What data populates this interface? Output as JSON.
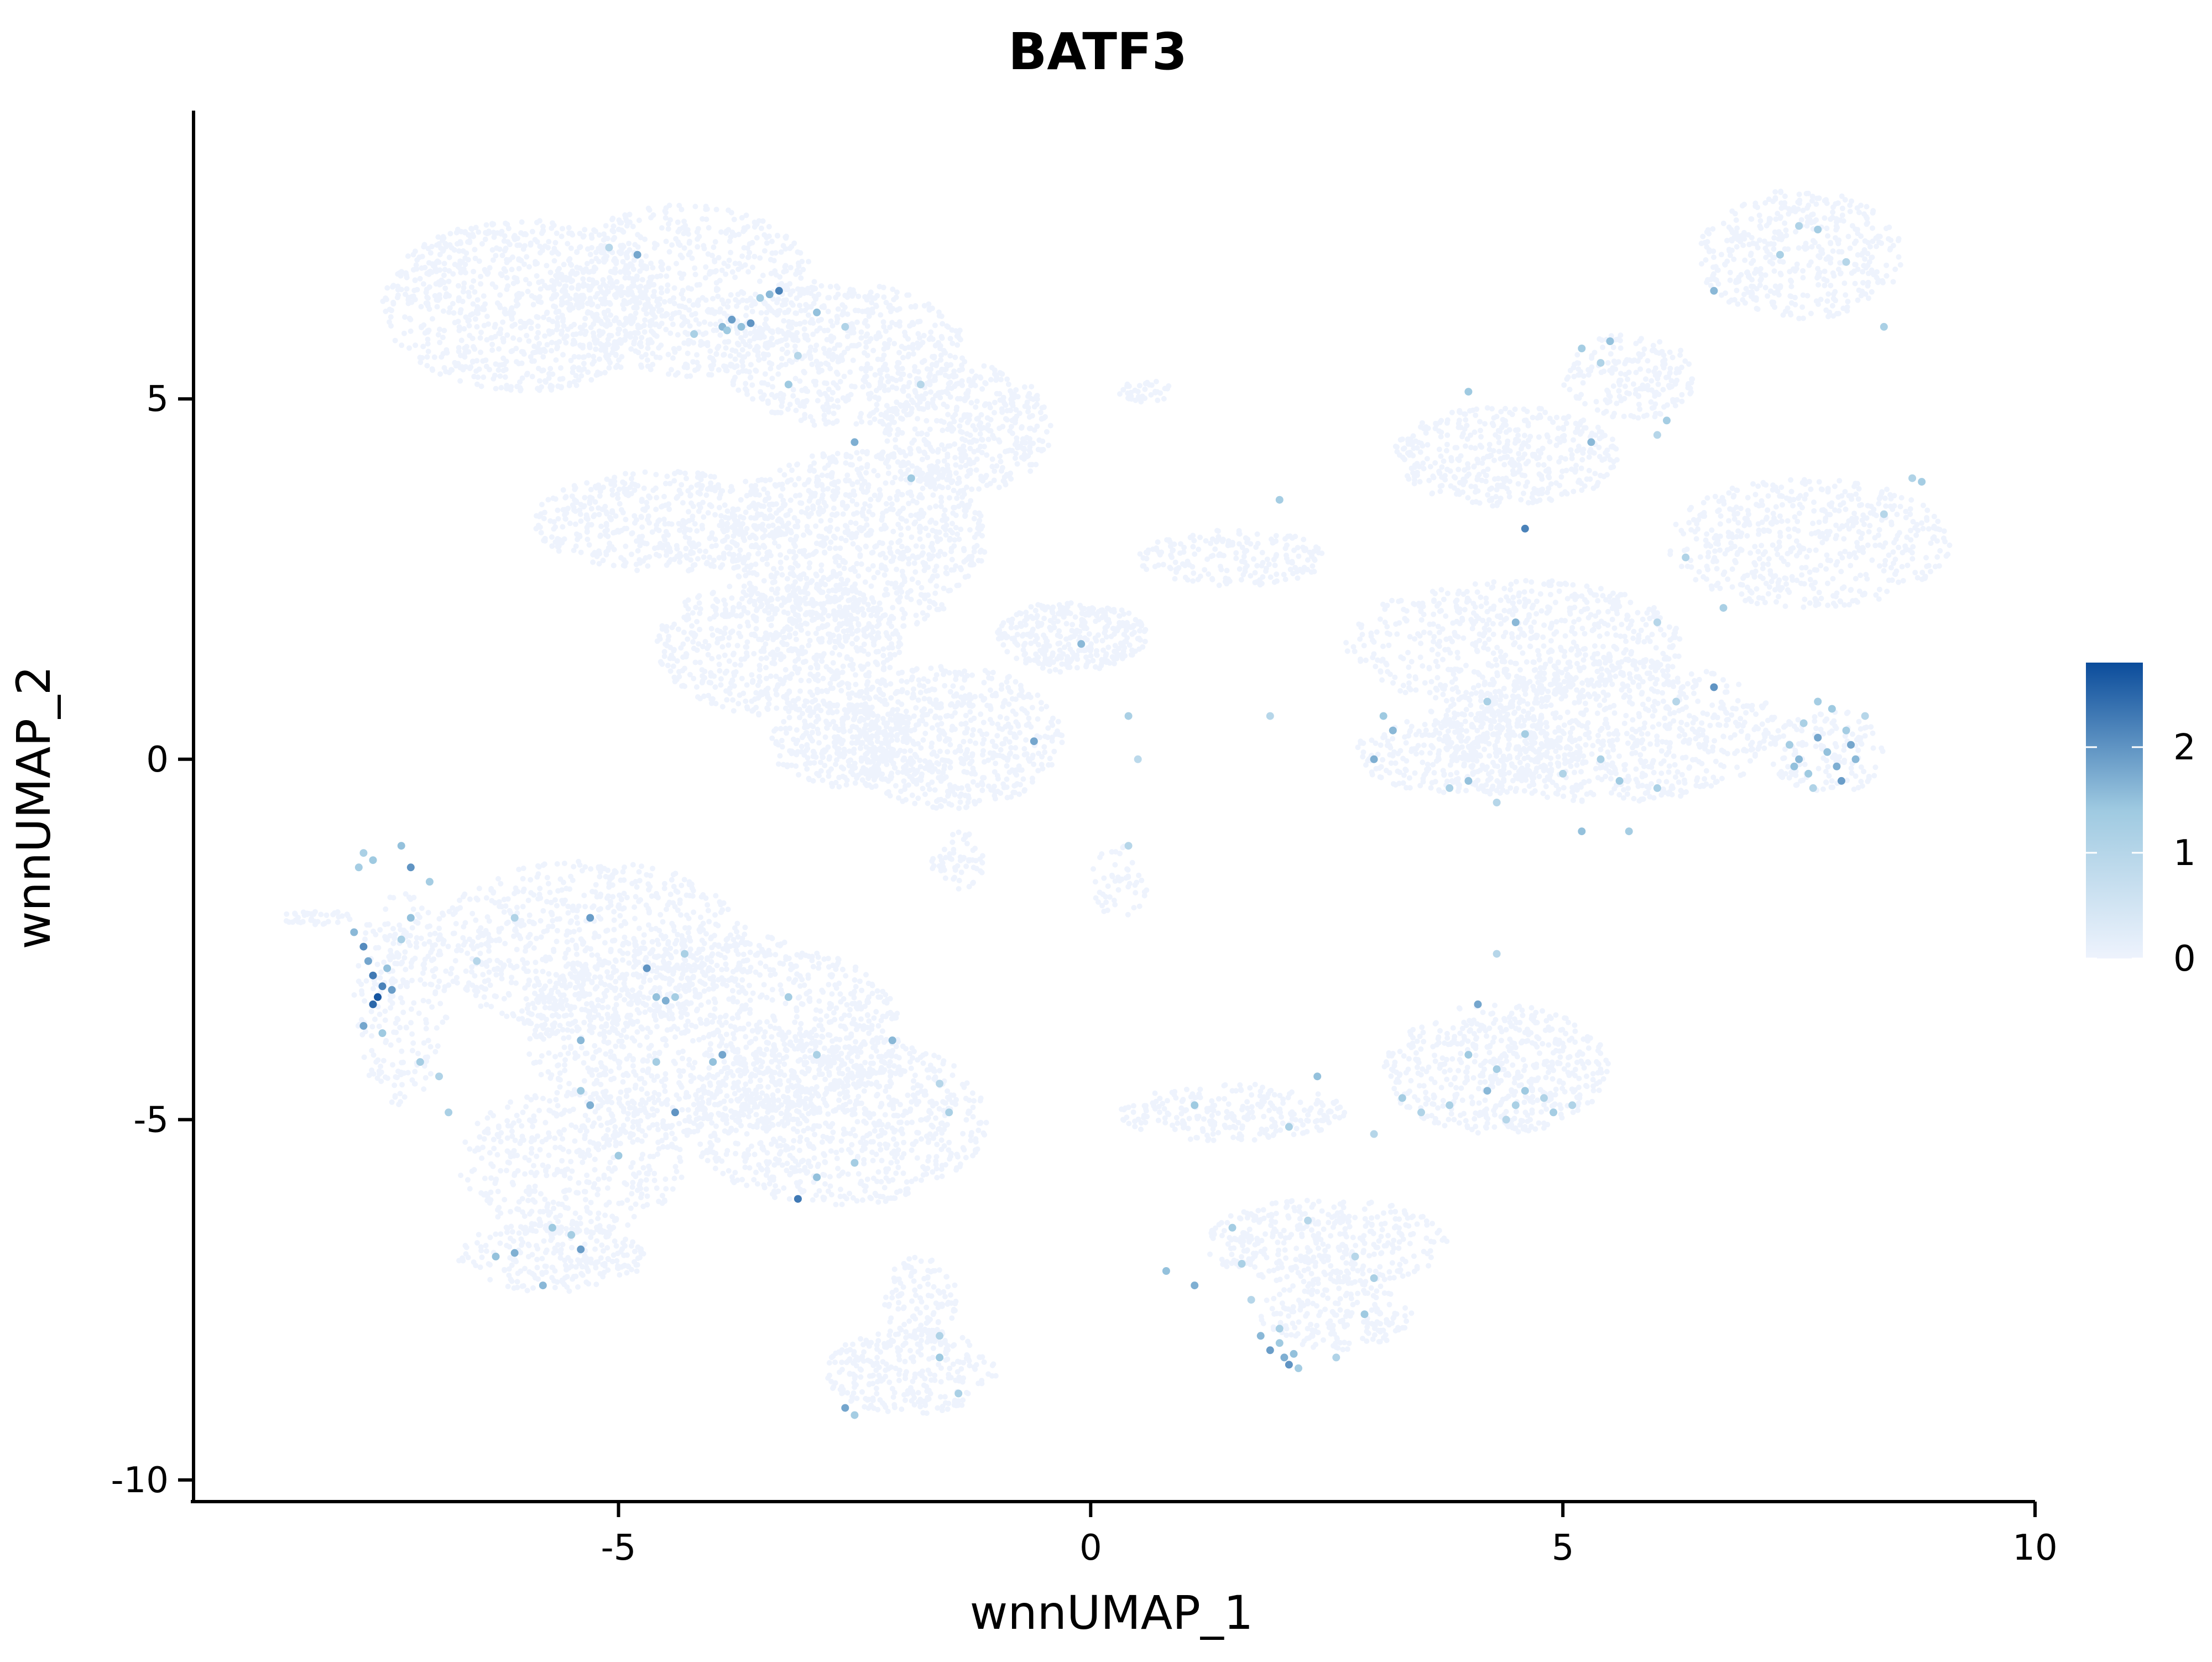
{
  "chart_data": {
    "type": "scatter",
    "title": "BATF3",
    "xlabel": "wnnUMAP_1",
    "ylabel": "wnnUMAP_2",
    "xlim": [
      -9.5,
      10
    ],
    "ylim": [
      -10.3,
      9.0
    ],
    "x_ticks": [
      {
        "value": -5,
        "label": "-5"
      },
      {
        "value": 0,
        "label": "0"
      },
      {
        "value": 5,
        "label": "5"
      },
      {
        "value": 10,
        "label": "10"
      }
    ],
    "y_ticks": [
      {
        "value": -10,
        "label": "-10"
      },
      {
        "value": -5,
        "label": "-5"
      },
      {
        "value": 0,
        "label": "0"
      },
      {
        "value": 5,
        "label": "5"
      }
    ],
    "grid": false,
    "legend_position": "right",
    "colorscale": {
      "low_color": "#eef3fd",
      "mid_color": "#9fcae1",
      "high_color": "#0b4c9b",
      "min": 0,
      "max": 2.8,
      "ticks": [
        {
          "value": 0,
          "label": "0"
        },
        {
          "value": 1,
          "label": "1"
        },
        {
          "value": 2,
          "label": "2"
        }
      ]
    },
    "background_clusters": [
      {
        "cx": -6.0,
        "cy": 6.3,
        "rx": 1.5,
        "ry": 1.2,
        "n": 900
      },
      {
        "cx": -4.3,
        "cy": 6.5,
        "rx": 1.4,
        "ry": 1.2,
        "n": 700
      },
      {
        "cx": -2.6,
        "cy": 5.6,
        "rx": 1.3,
        "ry": 1.0,
        "n": 600
      },
      {
        "cx": -1.3,
        "cy": 4.6,
        "rx": 0.9,
        "ry": 0.9,
        "n": 450
      },
      {
        "cx": -2.5,
        "cy": 3.0,
        "rx": 1.4,
        "ry": 1.3,
        "n": 900
      },
      {
        "cx": -4.5,
        "cy": 3.3,
        "rx": 1.4,
        "ry": 0.7,
        "n": 500
      },
      {
        "cx": -3.3,
        "cy": 1.6,
        "rx": 1.3,
        "ry": 1.0,
        "n": 700
      },
      {
        "cx": -1.5,
        "cy": 0.3,
        "rx": 1.2,
        "ry": 1.0,
        "n": 650
      },
      {
        "cx": -2.6,
        "cy": 0.2,
        "rx": 0.8,
        "ry": 0.6,
        "n": 300
      },
      {
        "cx": -0.2,
        "cy": 1.7,
        "rx": 0.8,
        "ry": 0.5,
        "n": 350
      },
      {
        "cx": -1.4,
        "cy": -1.4,
        "rx": 0.3,
        "ry": 0.4,
        "n": 60
      },
      {
        "cx": 0.3,
        "cy": -1.7,
        "rx": 0.3,
        "ry": 0.5,
        "n": 50
      },
      {
        "cx": 0.6,
        "cy": 5.1,
        "rx": 0.3,
        "ry": 0.15,
        "n": 40
      },
      {
        "cx": 1.5,
        "cy": 2.8,
        "rx": 1.0,
        "ry": 0.4,
        "n": 200
      },
      {
        "cx": 4.4,
        "cy": 4.2,
        "rx": 1.2,
        "ry": 0.7,
        "n": 450
      },
      {
        "cx": 5.7,
        "cy": 5.3,
        "rx": 0.7,
        "ry": 0.6,
        "n": 200
      },
      {
        "cx": 7.5,
        "cy": 7.0,
        "rx": 1.1,
        "ry": 0.9,
        "n": 450
      },
      {
        "cx": 7.6,
        "cy": 3.0,
        "rx": 1.5,
        "ry": 0.9,
        "n": 550
      },
      {
        "cx": 4.5,
        "cy": 1.6,
        "rx": 1.8,
        "ry": 0.9,
        "n": 650
      },
      {
        "cx": 5.5,
        "cy": 0.4,
        "rx": 1.8,
        "ry": 1.0,
        "n": 800
      },
      {
        "cx": 4.0,
        "cy": 0.1,
        "rx": 1.2,
        "ry": 0.6,
        "n": 400
      },
      {
        "cx": 7.8,
        "cy": 0.1,
        "rx": 0.6,
        "ry": 0.6,
        "n": 150
      },
      {
        "cx": -5.3,
        "cy": -2.6,
        "rx": 1.7,
        "ry": 1.2,
        "n": 800
      },
      {
        "cx": -4.0,
        "cy": -3.8,
        "rx": 2.0,
        "ry": 1.4,
        "n": 1200
      },
      {
        "cx": -2.7,
        "cy": -5.0,
        "rx": 1.6,
        "ry": 1.2,
        "n": 900
      },
      {
        "cx": -5.5,
        "cy": -5.6,
        "rx": 1.2,
        "ry": 1.0,
        "n": 450
      },
      {
        "cx": -5.7,
        "cy": -6.9,
        "rx": 1.0,
        "ry": 0.5,
        "n": 250
      },
      {
        "cx": -7.3,
        "cy": -3.3,
        "rx": 0.5,
        "ry": 1.5,
        "n": 250
      },
      {
        "cx": -8.2,
        "cy": -2.2,
        "rx": 0.4,
        "ry": 0.1,
        "n": 40
      },
      {
        "cx": -1.9,
        "cy": -8.5,
        "rx": 0.9,
        "ry": 0.6,
        "n": 300
      },
      {
        "cx": -1.8,
        "cy": -7.5,
        "rx": 0.4,
        "ry": 0.6,
        "n": 120
      },
      {
        "cx": 1.5,
        "cy": -4.9,
        "rx": 1.2,
        "ry": 0.4,
        "n": 250
      },
      {
        "cx": 4.3,
        "cy": -4.3,
        "rx": 1.2,
        "ry": 0.9,
        "n": 550
      },
      {
        "cx": 2.5,
        "cy": -6.7,
        "rx": 1.3,
        "ry": 0.6,
        "n": 400
      },
      {
        "cx": 2.6,
        "cy": -7.7,
        "rx": 0.8,
        "ry": 0.5,
        "n": 200
      }
    ],
    "expressing_cells": [
      {
        "x": -5.1,
        "y": 7.1,
        "v": 1.0
      },
      {
        "x": -4.8,
        "y": 7.0,
        "v": 1.8
      },
      {
        "x": -3.9,
        "y": 6.0,
        "v": 1.6
      },
      {
        "x": -3.8,
        "y": 6.1,
        "v": 1.9
      },
      {
        "x": -3.7,
        "y": 6.0,
        "v": 1.5
      },
      {
        "x": -3.6,
        "y": 6.05,
        "v": 2.0
      },
      {
        "x": -3.85,
        "y": 5.95,
        "v": 1.4
      },
      {
        "x": -3.5,
        "y": 6.4,
        "v": 1.3
      },
      {
        "x": -3.3,
        "y": 6.5,
        "v": 2.2
      },
      {
        "x": -3.4,
        "y": 6.45,
        "v": 1.6
      },
      {
        "x": -2.9,
        "y": 6.2,
        "v": 1.5
      },
      {
        "x": -2.6,
        "y": 6.0,
        "v": 1.1
      },
      {
        "x": -3.1,
        "y": 5.6,
        "v": 1.0
      },
      {
        "x": -3.2,
        "y": 5.2,
        "v": 1.4
      },
      {
        "x": -4.2,
        "y": 5.9,
        "v": 1.2
      },
      {
        "x": -2.5,
        "y": 4.4,
        "v": 1.7
      },
      {
        "x": -1.8,
        "y": 5.2,
        "v": 1.0
      },
      {
        "x": -1.9,
        "y": 3.9,
        "v": 1.4
      },
      {
        "x": -0.1,
        "y": 1.6,
        "v": 1.6
      },
      {
        "x": -0.6,
        "y": 0.25,
        "v": 1.8
      },
      {
        "x": 0.4,
        "y": 0.6,
        "v": 1.2
      },
      {
        "x": 0.5,
        "y": 0.0,
        "v": 0.9
      },
      {
        "x": 0.4,
        "y": -1.2,
        "v": 1.0
      },
      {
        "x": 2.0,
        "y": 3.6,
        "v": 1.3
      },
      {
        "x": 1.9,
        "y": 0.6,
        "v": 1.0
      },
      {
        "x": 4.0,
        "y": 5.1,
        "v": 1.4
      },
      {
        "x": 4.6,
        "y": 3.2,
        "v": 2.2
      },
      {
        "x": 4.5,
        "y": 1.9,
        "v": 1.6
      },
      {
        "x": 5.2,
        "y": 5.7,
        "v": 1.3
      },
      {
        "x": 5.4,
        "y": 5.5,
        "v": 1.1
      },
      {
        "x": 5.5,
        "y": 5.8,
        "v": 1.5
      },
      {
        "x": 5.3,
        "y": 4.4,
        "v": 1.6
      },
      {
        "x": 6.1,
        "y": 4.7,
        "v": 1.3
      },
      {
        "x": 6.0,
        "y": 4.5,
        "v": 1.0
      },
      {
        "x": 6.6,
        "y": 6.5,
        "v": 1.6
      },
      {
        "x": 7.3,
        "y": 7.0,
        "v": 1.2
      },
      {
        "x": 7.5,
        "y": 7.4,
        "v": 1.1
      },
      {
        "x": 7.7,
        "y": 7.35,
        "v": 1.3
      },
      {
        "x": 8.0,
        "y": 6.9,
        "v": 1.0
      },
      {
        "x": 8.4,
        "y": 6.0,
        "v": 1.2
      },
      {
        "x": 8.7,
        "y": 3.9,
        "v": 1.1
      },
      {
        "x": 8.8,
        "y": 3.85,
        "v": 1.3
      },
      {
        "x": 8.4,
        "y": 3.4,
        "v": 1.0
      },
      {
        "x": 6.3,
        "y": 2.8,
        "v": 1.1
      },
      {
        "x": 6.7,
        "y": 2.1,
        "v": 1.2
      },
      {
        "x": 6.6,
        "y": 1.0,
        "v": 2.0
      },
      {
        "x": 6.0,
        "y": 1.9,
        "v": 1.0
      },
      {
        "x": 4.2,
        "y": 0.8,
        "v": 1.2
      },
      {
        "x": 3.1,
        "y": 0.6,
        "v": 1.4
      },
      {
        "x": 3.2,
        "y": 0.4,
        "v": 1.6
      },
      {
        "x": 3.0,
        "y": 0.0,
        "v": 1.7
      },
      {
        "x": 3.8,
        "y": -0.4,
        "v": 1.2
      },
      {
        "x": 4.0,
        "y": -0.3,
        "v": 1.5
      },
      {
        "x": 4.3,
        "y": -0.6,
        "v": 1.0
      },
      {
        "x": 4.6,
        "y": 0.35,
        "v": 1.3
      },
      {
        "x": 5.0,
        "y": -0.2,
        "v": 1.1
      },
      {
        "x": 5.2,
        "y": -1.0,
        "v": 1.5
      },
      {
        "x": 5.4,
        "y": 0.0,
        "v": 1.2
      },
      {
        "x": 5.6,
        "y": -0.3,
        "v": 1.4
      },
      {
        "x": 5.7,
        "y": -1.0,
        "v": 1.3
      },
      {
        "x": 6.0,
        "y": -0.4,
        "v": 1.2
      },
      {
        "x": 6.2,
        "y": 0.8,
        "v": 1.0
      },
      {
        "x": 7.4,
        "y": 0.2,
        "v": 1.3
      },
      {
        "x": 7.5,
        "y": 0.0,
        "v": 1.6
      },
      {
        "x": 7.6,
        "y": -0.2,
        "v": 1.4
      },
      {
        "x": 7.7,
        "y": 0.3,
        "v": 1.8
      },
      {
        "x": 7.8,
        "y": 0.1,
        "v": 1.5
      },
      {
        "x": 7.9,
        "y": -0.1,
        "v": 1.7
      },
      {
        "x": 8.0,
        "y": 0.4,
        "v": 1.3
      },
      {
        "x": 8.1,
        "y": 0.0,
        "v": 1.6
      },
      {
        "x": 7.55,
        "y": 0.5,
        "v": 1.2
      },
      {
        "x": 7.65,
        "y": -0.4,
        "v": 1.1
      },
      {
        "x": 7.85,
        "y": 0.7,
        "v": 1.4
      },
      {
        "x": 7.95,
        "y": -0.3,
        "v": 1.9
      },
      {
        "x": 8.2,
        "y": 0.6,
        "v": 1.0
      },
      {
        "x": 7.45,
        "y": -0.1,
        "v": 1.5
      },
      {
        "x": 7.7,
        "y": 0.8,
        "v": 1.3
      },
      {
        "x": 8.05,
        "y": 0.2,
        "v": 1.8
      },
      {
        "x": -7.7,
        "y": -1.3,
        "v": 1.2
      },
      {
        "x": -7.6,
        "y": -1.4,
        "v": 1.4
      },
      {
        "x": -7.75,
        "y": -1.5,
        "v": 1.3
      },
      {
        "x": -7.3,
        "y": -1.2,
        "v": 1.5
      },
      {
        "x": -7.2,
        "y": -1.5,
        "v": 2.0
      },
      {
        "x": -7.0,
        "y": -1.7,
        "v": 1.3
      },
      {
        "x": -7.8,
        "y": -2.4,
        "v": 1.6
      },
      {
        "x": -7.7,
        "y": -2.6,
        "v": 2.1
      },
      {
        "x": -7.65,
        "y": -2.8,
        "v": 1.8
      },
      {
        "x": -7.6,
        "y": -3.0,
        "v": 2.3
      },
      {
        "x": -7.55,
        "y": -3.3,
        "v": 2.7
      },
      {
        "x": -7.6,
        "y": -3.4,
        "v": 2.5
      },
      {
        "x": -7.5,
        "y": -3.15,
        "v": 2.2
      },
      {
        "x": -7.4,
        "y": -3.2,
        "v": 1.9
      },
      {
        "x": -7.45,
        "y": -2.9,
        "v": 1.5
      },
      {
        "x": -7.7,
        "y": -3.7,
        "v": 1.8
      },
      {
        "x": -7.5,
        "y": -3.8,
        "v": 1.4
      },
      {
        "x": -7.3,
        "y": -2.5,
        "v": 1.2
      },
      {
        "x": -7.2,
        "y": -2.2,
        "v": 1.5
      },
      {
        "x": -7.1,
        "y": -4.2,
        "v": 1.3
      },
      {
        "x": -6.9,
        "y": -4.4,
        "v": 1.1
      },
      {
        "x": -6.8,
        "y": -4.9,
        "v": 1.2
      },
      {
        "x": -6.5,
        "y": -2.8,
        "v": 1.0
      },
      {
        "x": -6.1,
        "y": -2.2,
        "v": 1.1
      },
      {
        "x": -5.3,
        "y": -2.2,
        "v": 1.9
      },
      {
        "x": -4.7,
        "y": -2.9,
        "v": 2.0
      },
      {
        "x": -4.6,
        "y": -3.3,
        "v": 1.5
      },
      {
        "x": -4.5,
        "y": -3.35,
        "v": 1.7
      },
      {
        "x": -4.4,
        "y": -3.3,
        "v": 1.3
      },
      {
        "x": -4.3,
        "y": -2.7,
        "v": 1.2
      },
      {
        "x": -3.9,
        "y": -4.1,
        "v": 1.8
      },
      {
        "x": -4.0,
        "y": -4.2,
        "v": 1.5
      },
      {
        "x": -5.4,
        "y": -3.9,
        "v": 1.6
      },
      {
        "x": -4.6,
        "y": -4.2,
        "v": 1.3
      },
      {
        "x": -5.3,
        "y": -4.8,
        "v": 1.7
      },
      {
        "x": -5.4,
        "y": -4.6,
        "v": 1.4
      },
      {
        "x": -4.4,
        "y": -4.9,
        "v": 2.0
      },
      {
        "x": -5.0,
        "y": -5.5,
        "v": 1.4
      },
      {
        "x": -3.2,
        "y": -3.3,
        "v": 1.3
      },
      {
        "x": -2.9,
        "y": -4.1,
        "v": 1.2
      },
      {
        "x": -2.1,
        "y": -3.9,
        "v": 1.6
      },
      {
        "x": -3.1,
        "y": -6.1,
        "v": 2.3
      },
      {
        "x": -2.9,
        "y": -5.8,
        "v": 1.5
      },
      {
        "x": -2.5,
        "y": -5.6,
        "v": 1.3
      },
      {
        "x": -1.5,
        "y": -4.9,
        "v": 1.2
      },
      {
        "x": -1.6,
        "y": -4.5,
        "v": 1.0
      },
      {
        "x": -6.3,
        "y": -6.9,
        "v": 1.5
      },
      {
        "x": -6.1,
        "y": -6.85,
        "v": 1.7
      },
      {
        "x": -5.7,
        "y": -6.5,
        "v": 1.4
      },
      {
        "x": -5.4,
        "y": -6.8,
        "v": 1.9
      },
      {
        "x": -5.5,
        "y": -6.6,
        "v": 1.3
      },
      {
        "x": -5.8,
        "y": -7.3,
        "v": 1.6
      },
      {
        "x": -2.6,
        "y": -9.0,
        "v": 1.8
      },
      {
        "x": -2.5,
        "y": -9.1,
        "v": 1.3
      },
      {
        "x": -1.6,
        "y": -8.3,
        "v": 1.4
      },
      {
        "x": -1.4,
        "y": -8.8,
        "v": 1.2
      },
      {
        "x": -1.6,
        "y": -8.0,
        "v": 1.1
      },
      {
        "x": 1.1,
        "y": -4.8,
        "v": 1.4
      },
      {
        "x": 0.8,
        "y": -7.1,
        "v": 1.5
      },
      {
        "x": 1.1,
        "y": -7.3,
        "v": 1.7
      },
      {
        "x": 1.5,
        "y": -6.5,
        "v": 1.3
      },
      {
        "x": 1.6,
        "y": -7.0,
        "v": 1.2
      },
      {
        "x": 1.7,
        "y": -7.5,
        "v": 1.0
      },
      {
        "x": 1.8,
        "y": -8.0,
        "v": 1.6
      },
      {
        "x": 1.9,
        "y": -8.2,
        "v": 1.9
      },
      {
        "x": 2.0,
        "y": -8.1,
        "v": 1.4
      },
      {
        "x": 2.05,
        "y": -8.3,
        "v": 1.7
      },
      {
        "x": 2.1,
        "y": -8.4,
        "v": 2.0
      },
      {
        "x": 2.15,
        "y": -8.25,
        "v": 1.5
      },
      {
        "x": 2.2,
        "y": -8.45,
        "v": 1.3
      },
      {
        "x": 2.0,
        "y": -7.9,
        "v": 1.2
      },
      {
        "x": 2.6,
        "y": -8.3,
        "v": 1.1
      },
      {
        "x": 2.3,
        "y": -6.4,
        "v": 1.0
      },
      {
        "x": 3.0,
        "y": -7.2,
        "v": 1.2
      },
      {
        "x": 2.9,
        "y": -7.7,
        "v": 1.4
      },
      {
        "x": 2.8,
        "y": -6.9,
        "v": 1.0
      },
      {
        "x": 2.4,
        "y": -4.4,
        "v": 1.5
      },
      {
        "x": 4.1,
        "y": -3.4,
        "v": 1.8
      },
      {
        "x": 4.0,
        "y": -4.1,
        "v": 1.4
      },
      {
        "x": 4.3,
        "y": -4.3,
        "v": 1.3
      },
      {
        "x": 4.2,
        "y": -4.6,
        "v": 1.6
      },
      {
        "x": 4.5,
        "y": -4.8,
        "v": 1.2
      },
      {
        "x": 4.6,
        "y": -4.6,
        "v": 1.4
      },
      {
        "x": 4.8,
        "y": -4.7,
        "v": 1.1
      },
      {
        "x": 4.9,
        "y": -4.9,
        "v": 1.3
      },
      {
        "x": 4.4,
        "y": -5.0,
        "v": 1.0
      },
      {
        "x": 3.8,
        "y": -4.8,
        "v": 1.2
      },
      {
        "x": 3.5,
        "y": -4.9,
        "v": 1.1
      },
      {
        "x": 3.3,
        "y": -4.7,
        "v": 1.3
      },
      {
        "x": 3.0,
        "y": -5.2,
        "v": 1.0
      },
      {
        "x": 2.1,
        "y": -5.1,
        "v": 1.2
      },
      {
        "x": 4.3,
        "y": -2.7,
        "v": 1.0
      },
      {
        "x": 5.1,
        "y": -4.8,
        "v": 1.1
      }
    ]
  }
}
